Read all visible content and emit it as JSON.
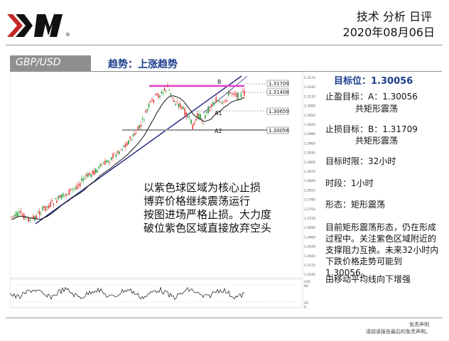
{
  "header": {
    "logo_text": "XM",
    "title": "技术 分析 日评",
    "date": "2020年08月06日"
  },
  "bar": {
    "pair": "GBP/USD",
    "trend": "趋势：上涨趋势"
  },
  "chart": {
    "labels": {
      "b": "B",
      "a1": "A1",
      "a2": "A2"
    },
    "levels": [
      "1.31709",
      "1.31408",
      "1.30659",
      "1.30056"
    ],
    "axis_ticks": [
      "1.3170",
      "1.3140",
      "1.3110",
      "1.3080",
      "1.3050",
      "1.3020",
      "1.2990",
      "1.2960",
      "1.2930",
      "1.2900",
      "1.2870",
      "1.2840",
      "1.2810",
      "1.2780",
      "1.2750",
      "1.2720",
      "1.2690",
      "1.2660",
      "1.2630",
      "1.2600",
      "1.2570",
      "1.2540"
    ],
    "osc_ticks": [
      "100",
      "80",
      "20",
      "0"
    ],
    "colors": {
      "zone": "#e040c8",
      "trendline": "#1a237e",
      "candle_up": "#2e9e3e",
      "candle_down": "#e53935"
    }
  },
  "overlay_text": [
    "以紫色球区域为核心止损",
    "博弈价格继续震荡运行",
    "按图进场严格止损。大力度",
    "破位紫色区域直接放弃空头"
  ],
  "info": {
    "target_label": "目标位：1.30056",
    "tp_line1": "止盈目标：A：1.30056",
    "tp_line2": "共矩形震荡",
    "sl_line1": "止损目标：B：1.31709",
    "sl_line2": "共矩形震荡",
    "time_limit": "目标时限：32小时",
    "period": "时段：1小时",
    "pattern": "形态：矩形震荡",
    "description": "目前矩形震荡形态，仍在形成过程中。关注紫色区域附近的支撑阻力互换。未来32小时内下跌价格走势可能到1.30056。",
    "ma_note": "由移动平均线向下增强"
  },
  "footer": {
    "disclaimer_title": "免责声明",
    "disclaimer_text": "请阅读报告最后的免责声明。"
  }
}
